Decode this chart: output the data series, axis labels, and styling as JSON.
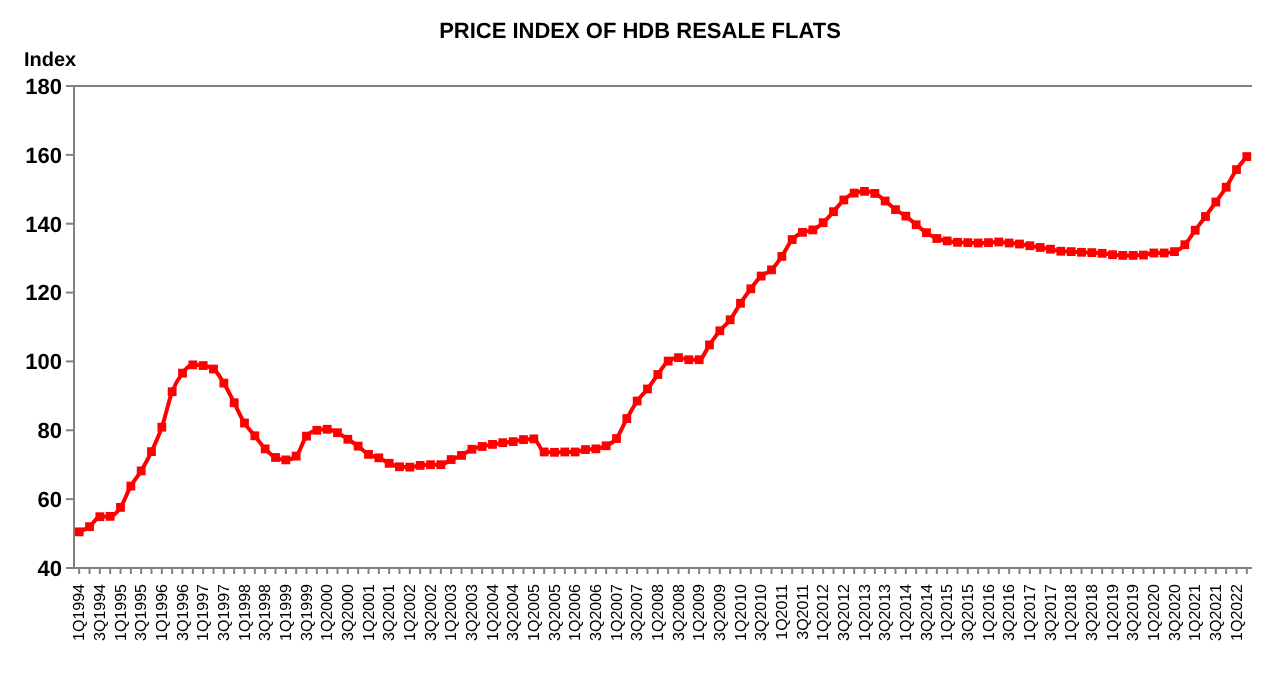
{
  "chart_data": {
    "type": "line",
    "title": "PRICE INDEX OF HDB RESALE FLATS",
    "ylabel": "Index",
    "categories": [
      "1Q1994",
      null,
      "3Q1994",
      null,
      "1Q1995",
      null,
      "3Q1995",
      null,
      "1Q1996",
      null,
      "3Q1996",
      null,
      "1Q1997",
      null,
      "3Q1997",
      null,
      "1Q1998",
      null,
      "3Q1998",
      null,
      "1Q1999",
      null,
      "3Q1999",
      null,
      "1Q2000",
      null,
      "3Q2000",
      null,
      "1Q2001",
      null,
      "3Q2001",
      null,
      "1Q2002",
      null,
      "3Q2002",
      null,
      "1Q2003",
      null,
      "3Q2003",
      null,
      "1Q2004",
      null,
      "3Q2004",
      null,
      "1Q2005",
      null,
      "3Q2005",
      null,
      "1Q2006",
      null,
      "3Q2006",
      null,
      "1Q2007",
      null,
      "3Q2007",
      null,
      "1Q2008",
      null,
      "3Q2008",
      null,
      "1Q2009",
      null,
      "3Q2009",
      null,
      "1Q2010",
      null,
      "3Q2010",
      null,
      "1Q2011",
      null,
      "3Q2011",
      null,
      "1Q2012",
      null,
      "3Q2012",
      null,
      "1Q2013",
      null,
      "3Q2013",
      null,
      "1Q2014",
      null,
      "3Q2014",
      null,
      "1Q2015",
      null,
      "3Q2015",
      null,
      "1Q2016",
      null,
      "3Q2016",
      null,
      "1Q2017",
      null,
      "3Q2017",
      null,
      "1Q2018",
      null,
      "3Q2018",
      null,
      "1Q2019",
      null,
      "3Q2019",
      null,
      "1Q2020",
      null,
      "3Q2020",
      null,
      "1Q2021",
      null,
      "3Q2021",
      null,
      "1Q2022",
      null
    ],
    "series": [
      {
        "color": "#ff0000",
        "values": [
          50.5,
          52,
          54.9,
          55,
          57.6,
          63.8,
          68.2,
          73.8,
          80.9,
          91.2,
          96.6,
          99,
          98.8,
          97.8,
          93.7,
          88,
          82.1,
          78.4,
          74.6,
          72.1,
          71.4,
          72.5,
          78.3,
          80,
          80.3,
          79.3,
          77.4,
          75.4,
          73,
          72,
          70.4,
          69.4,
          69.3,
          69.8,
          70,
          70,
          71.5,
          72.7,
          74.5,
          75.3,
          75.9,
          76.4,
          76.7,
          77.3,
          77.5,
          73.7,
          73.6,
          73.7,
          73.7,
          74.4,
          74.6,
          75.5,
          77.6,
          83.4,
          88.5,
          92,
          96.2,
          100.1,
          101.1,
          100.5,
          100.5,
          104.8,
          108.9,
          112.1,
          116.9,
          121.1,
          124.8,
          126.6,
          130.5,
          135.4,
          137.5,
          138.2,
          140.3,
          143.5,
          146.9,
          148.9,
          149.4,
          148.8,
          146.6,
          144.1,
          142.2,
          139.7,
          137.4,
          135.7,
          135,
          134.6,
          134.5,
          134.4,
          134.5,
          134.7,
          134.4,
          134.1,
          133.6,
          133.1,
          132.6,
          132,
          131.9,
          131.7,
          131.6,
          131.4,
          131,
          130.8,
          130.8,
          130.9,
          131.5,
          131.5,
          131.9,
          133.9,
          138.1,
          142.1,
          146.3,
          150.6,
          155.7,
          159.5
        ]
      }
    ],
    "ylim": [
      40,
      180
    ],
    "yticks": [
      40,
      60,
      80,
      100,
      120,
      140,
      160,
      180
    ],
    "marker": "square",
    "line_style": "solid"
  }
}
